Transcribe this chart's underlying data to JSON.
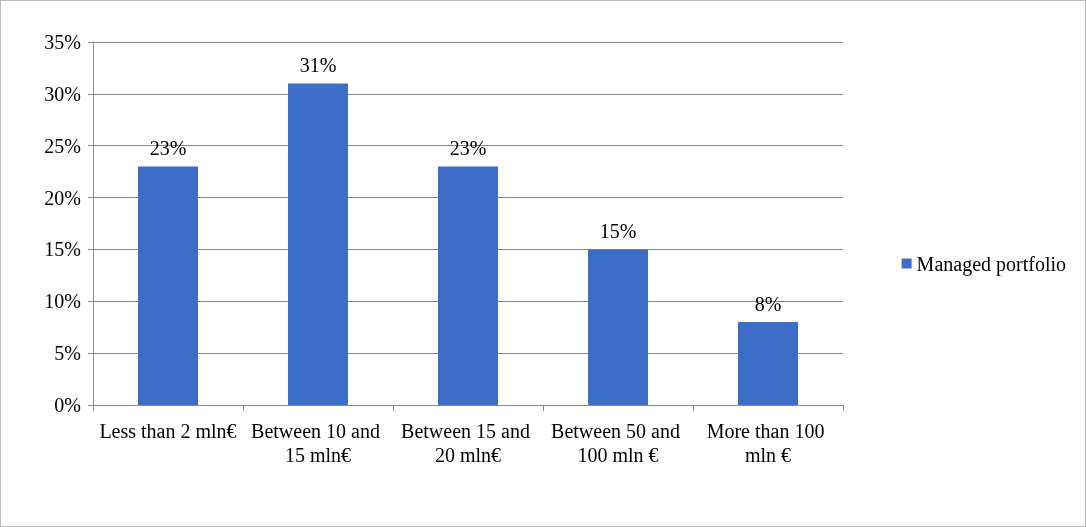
{
  "chart_data": {
    "type": "bar",
    "categories": [
      "Less than 2 mln€",
      "Between 10 and 15 mln€",
      "Between 15 and 20 mln€",
      "Between 50 and 100 mln €",
      "More than 100 mln €"
    ],
    "series": [
      {
        "name": "Managed portfolio",
        "color": "#3d6dc6",
        "values": [
          23,
          31,
          23,
          15,
          8
        ],
        "value_labels": [
          "23%",
          "31%",
          "23%",
          "15%",
          "8%"
        ]
      }
    ],
    "ylim": [
      0,
      35
    ],
    "yticks": [
      {
        "value": 0,
        "label": "0%"
      },
      {
        "value": 5,
        "label": "5%"
      },
      {
        "value": 10,
        "label": "10%"
      },
      {
        "value": 15,
        "label": "15%"
      },
      {
        "value": 20,
        "label": "20%"
      },
      {
        "value": 25,
        "label": "25%"
      },
      {
        "value": 30,
        "label": "30%"
      },
      {
        "value": 35,
        "label": "35%"
      }
    ],
    "grid": "y",
    "legend": "right"
  }
}
